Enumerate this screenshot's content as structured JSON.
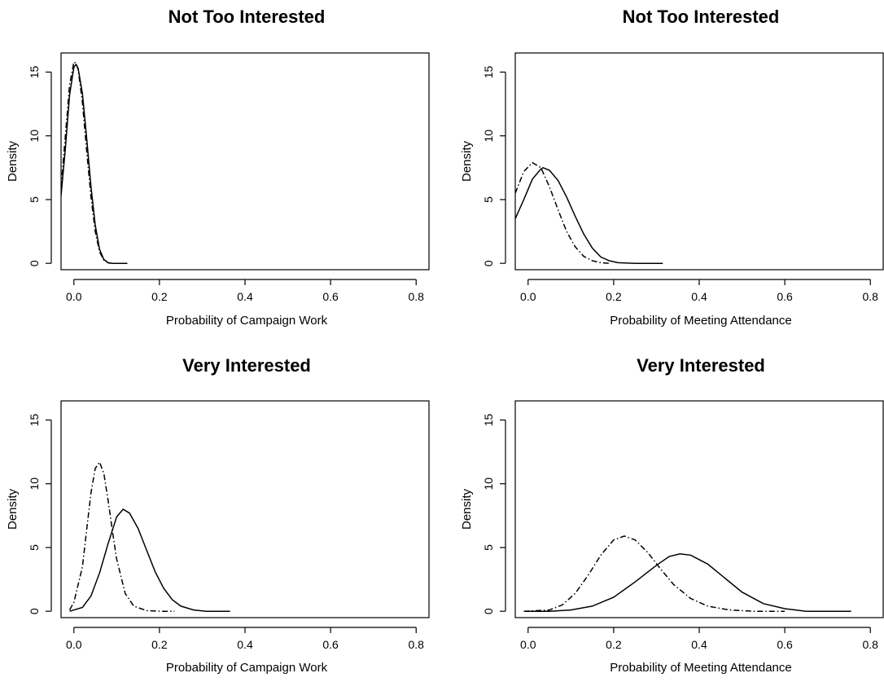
{
  "chart_data": [
    {
      "type": "line",
      "title": "Not Too Interested",
      "xlabel": "Probability of Campaign Work",
      "ylabel": "Density",
      "xlim": [
        -0.03,
        0.83
      ],
      "ylim": [
        -0.5,
        16.5
      ],
      "x_ticks": [
        0.0,
        0.2,
        0.4,
        0.6,
        0.8
      ],
      "x_tick_labels": [
        "0.0",
        "0.2",
        "0.4",
        "0.6",
        "0.8"
      ],
      "y_ticks": [
        0,
        5,
        10,
        15
      ],
      "y_tick_labels": [
        "0",
        "5",
        "10",
        "15"
      ],
      "grid": false,
      "series": [
        {
          "style": "solid",
          "x": [
            -0.03,
            -0.02,
            -0.01,
            0.0,
            0.005,
            0.01,
            0.02,
            0.03,
            0.04,
            0.05,
            0.06,
            0.07,
            0.08,
            0.09,
            0.1,
            0.125
          ],
          "values": [
            5.3,
            9.0,
            13.2,
            15.4,
            15.6,
            15.3,
            13.3,
            9.8,
            6.0,
            3.0,
            1.1,
            0.3,
            0.05,
            0.0,
            0.0,
            0.0
          ]
        },
        {
          "style": "dashdot",
          "x": [
            -0.03,
            -0.02,
            -0.01,
            0.0,
            0.005,
            0.01,
            0.02,
            0.03,
            0.04,
            0.05,
            0.06,
            0.07,
            0.08,
            0.085
          ],
          "values": [
            6.0,
            10.0,
            14.0,
            15.8,
            15.7,
            15.2,
            12.6,
            8.8,
            5.2,
            2.5,
            0.9,
            0.25,
            0.05,
            0.0
          ]
        }
      ]
    },
    {
      "type": "line",
      "title": "Not Too Interested",
      "xlabel": "Probability of Meeting Attendance",
      "ylabel": "Density",
      "xlim": [
        -0.03,
        0.83
      ],
      "ylim": [
        -0.5,
        16.5
      ],
      "x_ticks": [
        0.0,
        0.2,
        0.4,
        0.6,
        0.8
      ],
      "x_tick_labels": [
        "0.0",
        "0.2",
        "0.4",
        "0.6",
        "0.8"
      ],
      "y_ticks": [
        0,
        5,
        10,
        15
      ],
      "y_tick_labels": [
        "0",
        "5",
        "10",
        "15"
      ],
      "grid": false,
      "series": [
        {
          "style": "solid",
          "x": [
            -0.03,
            -0.01,
            0.01,
            0.03,
            0.035,
            0.05,
            0.07,
            0.09,
            0.11,
            0.13,
            0.15,
            0.17,
            0.19,
            0.21,
            0.25,
            0.315
          ],
          "values": [
            3.5,
            5.0,
            6.6,
            7.4,
            7.5,
            7.3,
            6.5,
            5.2,
            3.7,
            2.3,
            1.2,
            0.5,
            0.2,
            0.05,
            0.0,
            0.0
          ]
        },
        {
          "style": "dashdot",
          "x": [
            -0.03,
            -0.01,
            0.01,
            0.03,
            0.05,
            0.07,
            0.09,
            0.11,
            0.13,
            0.15,
            0.17,
            0.19
          ],
          "values": [
            5.5,
            7.2,
            7.9,
            7.5,
            6.0,
            4.2,
            2.5,
            1.3,
            0.55,
            0.2,
            0.05,
            0.0
          ]
        }
      ]
    },
    {
      "type": "line",
      "title": "Very Interested",
      "xlabel": "Probability of Campaign Work",
      "ylabel": "Density",
      "xlim": [
        -0.03,
        0.83
      ],
      "ylim": [
        -0.5,
        16.5
      ],
      "x_ticks": [
        0.0,
        0.2,
        0.4,
        0.6,
        0.8
      ],
      "x_tick_labels": [
        "0.0",
        "0.2",
        "0.4",
        "0.6",
        "0.8"
      ],
      "y_ticks": [
        0,
        5,
        10,
        15
      ],
      "y_tick_labels": [
        "0",
        "5",
        "10",
        "15"
      ],
      "grid": false,
      "series": [
        {
          "style": "solid",
          "x": [
            -0.01,
            0.02,
            0.04,
            0.06,
            0.08,
            0.1,
            0.115,
            0.13,
            0.15,
            0.17,
            0.19,
            0.21,
            0.23,
            0.25,
            0.28,
            0.31,
            0.365
          ],
          "values": [
            0.0,
            0.3,
            1.2,
            3.0,
            5.3,
            7.4,
            8.0,
            7.7,
            6.5,
            4.8,
            3.1,
            1.8,
            0.9,
            0.4,
            0.1,
            0.0,
            0.0
          ]
        },
        {
          "style": "dashdot",
          "x": [
            -0.01,
            0.0,
            0.02,
            0.03,
            0.04,
            0.05,
            0.06,
            0.07,
            0.08,
            0.09,
            0.1,
            0.12,
            0.14,
            0.17,
            0.21,
            0.235
          ],
          "values": [
            0.1,
            0.7,
            3.5,
            6.4,
            9.3,
            11.2,
            11.7,
            10.8,
            8.7,
            6.3,
            4.1,
            1.4,
            0.4,
            0.05,
            0.0,
            0.0
          ]
        }
      ]
    },
    {
      "type": "line",
      "title": "Very Interested",
      "xlabel": "Probability of Meeting Attendance",
      "ylabel": "Density",
      "xlim": [
        -0.03,
        0.83
      ],
      "ylim": [
        -0.5,
        16.5
      ],
      "x_ticks": [
        0.0,
        0.2,
        0.4,
        0.6,
        0.8
      ],
      "x_tick_labels": [
        "0.0",
        "0.2",
        "0.4",
        "0.6",
        "0.8"
      ],
      "y_ticks": [
        0,
        5,
        10,
        15
      ],
      "y_tick_labels": [
        "0",
        "5",
        "10",
        "15"
      ],
      "grid": false,
      "series": [
        {
          "style": "solid",
          "x": [
            -0.01,
            0.05,
            0.1,
            0.15,
            0.2,
            0.25,
            0.3,
            0.33,
            0.355,
            0.38,
            0.42,
            0.46,
            0.5,
            0.55,
            0.6,
            0.65,
            0.755
          ],
          "values": [
            0.0,
            0.0,
            0.1,
            0.4,
            1.1,
            2.3,
            3.6,
            4.3,
            4.5,
            4.4,
            3.7,
            2.6,
            1.5,
            0.6,
            0.2,
            0.0,
            0.0
          ]
        },
        {
          "style": "dashdot",
          "x": [
            -0.01,
            0.05,
            0.08,
            0.11,
            0.14,
            0.17,
            0.2,
            0.225,
            0.25,
            0.28,
            0.31,
            0.34,
            0.38,
            0.42,
            0.47,
            0.53,
            0.6
          ],
          "values": [
            0.0,
            0.1,
            0.5,
            1.4,
            2.8,
            4.4,
            5.6,
            5.9,
            5.6,
            4.6,
            3.3,
            2.1,
            1.0,
            0.4,
            0.1,
            0.0,
            0.0
          ]
        }
      ]
    }
  ]
}
